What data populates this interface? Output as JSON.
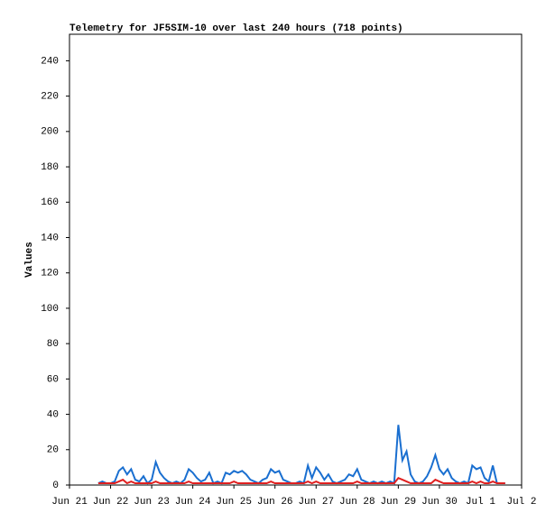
{
  "chart_data": {
    "type": "line",
    "title": "Telemetry for JF5SIM-10 over last 240 hours (718 points)",
    "ylabel": "Values",
    "x": [
      0.7,
      0.8,
      0.9,
      1.0,
      1.1,
      1.2,
      1.3,
      1.4,
      1.5,
      1.6,
      1.7,
      1.8,
      1.9,
      2.0,
      2.1,
      2.2,
      2.3,
      2.4,
      2.5,
      2.6,
      2.7,
      2.8,
      2.9,
      3.0,
      3.1,
      3.2,
      3.3,
      3.4,
      3.5,
      3.6,
      3.7,
      3.8,
      3.9,
      4.0,
      4.1,
      4.2,
      4.3,
      4.4,
      4.5,
      4.6,
      4.7,
      4.8,
      4.9,
      5.0,
      5.1,
      5.2,
      5.3,
      5.4,
      5.5,
      5.6,
      5.7,
      5.8,
      5.9,
      6.0,
      6.1,
      6.2,
      6.3,
      6.4,
      6.5,
      6.6,
      6.7,
      6.8,
      6.9,
      7.0,
      7.1,
      7.2,
      7.3,
      7.4,
      7.5,
      7.6,
      7.7,
      7.8,
      7.9,
      8.0,
      8.1,
      8.2,
      8.3,
      8.4,
      8.5,
      8.6,
      8.7,
      8.8,
      8.9,
      9.0,
      9.1,
      9.2,
      9.3,
      9.4,
      9.5,
      9.6,
      9.7,
      9.8,
      9.9,
      10.0,
      10.1,
      10.2,
      10.3,
      10.4,
      10.5,
      10.6
    ],
    "series": [
      {
        "color": "#1a6fd0",
        "values": [
          1,
          2,
          1,
          1,
          2,
          8,
          10,
          6,
          9,
          3,
          2,
          5,
          1,
          3,
          13,
          7,
          4,
          2,
          1,
          2,
          1,
          3,
          9,
          7,
          4,
          2,
          3,
          7,
          1,
          2,
          1,
          7,
          6,
          8,
          7,
          8,
          6,
          3,
          2,
          1,
          3,
          4,
          9,
          7,
          8,
          3,
          2,
          1,
          1,
          2,
          1,
          11,
          4,
          10,
          7,
          3,
          6,
          2,
          1,
          2,
          3,
          6,
          5,
          9,
          3,
          2,
          1,
          2,
          1,
          2,
          1,
          2,
          1,
          34,
          14,
          19,
          6,
          2,
          1,
          2,
          5,
          10,
          17,
          9,
          6,
          9,
          4,
          2,
          1,
          2,
          1,
          11,
          9,
          10,
          4,
          2,
          11,
          1,
          1,
          1
        ]
      },
      {
        "color": "#e02020",
        "values": [
          1,
          1,
          1,
          1,
          1,
          2,
          3,
          1,
          2,
          1,
          1,
          1,
          1,
          1,
          2,
          1,
          1,
          1,
          1,
          1,
          1,
          1,
          2,
          1,
          1,
          1,
          1,
          1,
          1,
          1,
          1,
          1,
          1,
          2,
          1,
          1,
          1,
          1,
          1,
          1,
          1,
          1,
          2,
          1,
          1,
          1,
          1,
          1,
          1,
          1,
          1,
          2,
          1,
          2,
          1,
          1,
          1,
          1,
          1,
          1,
          1,
          1,
          1,
          2,
          1,
          1,
          1,
          1,
          1,
          1,
          1,
          1,
          1,
          4,
          3,
          2,
          1,
          1,
          1,
          1,
          1,
          1,
          3,
          2,
          1,
          1,
          1,
          1,
          1,
          1,
          1,
          2,
          1,
          2,
          1,
          1,
          2,
          1,
          1,
          1
        ]
      }
    ],
    "xlim": [
      0,
      11
    ],
    "xticks": [
      {
        "value": 0,
        "label": "Jun 21"
      },
      {
        "value": 1,
        "label": "Jun 22"
      },
      {
        "value": 2,
        "label": "Jun 23"
      },
      {
        "value": 3,
        "label": "Jun 24"
      },
      {
        "value": 4,
        "label": "Jun 25"
      },
      {
        "value": 5,
        "label": "Jun 26"
      },
      {
        "value": 6,
        "label": "Jun 27"
      },
      {
        "value": 7,
        "label": "Jun 28"
      },
      {
        "value": 8,
        "label": "Jun 29"
      },
      {
        "value": 9,
        "label": "Jun 30"
      },
      {
        "value": 10,
        "label": "Jul 1"
      },
      {
        "value": 11,
        "label": "Jul 2"
      }
    ],
    "ylim": [
      0,
      255
    ],
    "yticks": [
      0,
      20,
      40,
      60,
      80,
      100,
      120,
      140,
      160,
      180,
      200,
      220,
      240
    ]
  }
}
